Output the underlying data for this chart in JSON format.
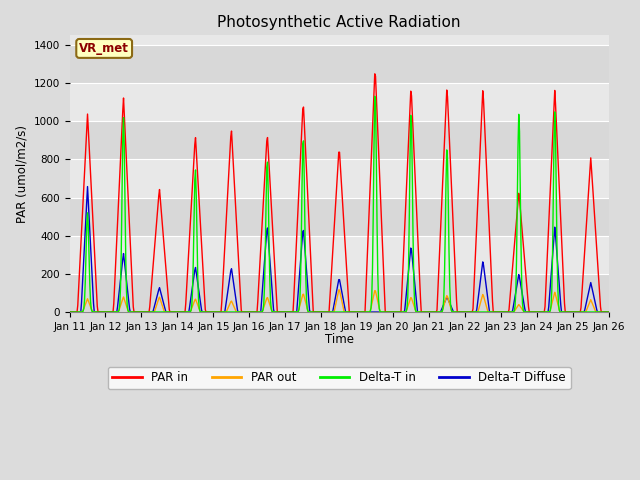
{
  "title": "Photosynthetic Active Radiation",
  "ylabel": "PAR (umol/m2/s)",
  "xlabel": "Time",
  "station_label": "VR_met",
  "ylim": [
    0,
    1450
  ],
  "yticks": [
    0,
    200,
    400,
    600,
    800,
    1000,
    1200,
    1400
  ],
  "xtick_labels": [
    "Jan 11",
    "Jan 12",
    "Jan 13",
    "Jan 14",
    "Jan 15",
    "Jan 16",
    "Jan 17",
    "Jan 18",
    "Jan 19",
    "Jan 20",
    "Jan 21",
    "Jan 22",
    "Jan 23",
    "Jan 24",
    "Jan 25",
    "Jan 26"
  ],
  "background_color": "#dcdcdc",
  "plot_bg_color": "#e8e8e8",
  "colors": {
    "PAR in": "#ff0000",
    "PAR out": "#ffa500",
    "Delta-T in": "#00ee00",
    "Delta-T Diffuse": "#0000cc"
  },
  "band_colors": [
    "#d8d8d8",
    "#e8e8e8"
  ],
  "day_peaks": {
    "PAR_in": [
      1040,
      1130,
      650,
      930,
      970,
      940,
      1110,
      870,
      1290,
      1190,
      1190,
      1180,
      630,
      1170,
      810
    ],
    "PAR_out": [
      70,
      80,
      80,
      70,
      60,
      80,
      100,
      125,
      120,
      80,
      90,
      95,
      40,
      105,
      65
    ],
    "Delta_T_in": [
      520,
      1020,
      0,
      750,
      0,
      800,
      920,
      0,
      1160,
      1050,
      860,
      0,
      1040,
      1050,
      0
    ],
    "Delta_T_diff": [
      660,
      310,
      130,
      240,
      235,
      460,
      450,
      180,
      0,
      350,
      80,
      270,
      200,
      450,
      155
    ]
  },
  "figsize": [
    6.4,
    4.8
  ],
  "dpi": 100
}
